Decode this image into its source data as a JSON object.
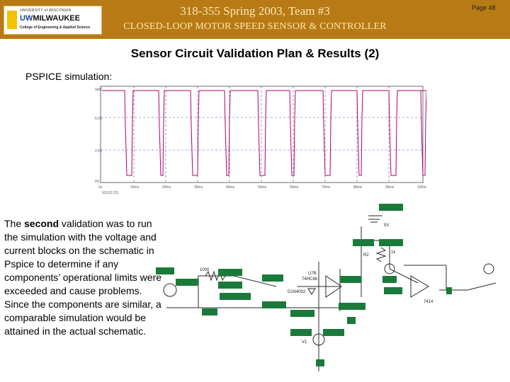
{
  "header": {
    "logo": {
      "university_line": "UNIVERSITY of WISCONSIN",
      "name_prefix": "UW",
      "name_main": "MILWAUKEE",
      "college_line": "College of Engineering & Applied Science"
    },
    "title": "318-355 Spring 2003, Team #3",
    "subtitle": "CLOSED-LOOP MOTOR SPEED SENSOR & CONTROLLER",
    "page_label": "Page 48",
    "colors": {
      "banner": "#b87a14",
      "banner_text": "#fbe7b8"
    }
  },
  "slide": {
    "title": "Sensor Circuit Validation Plan & Results (2)",
    "sim_label": "PSPICE simulation:"
  },
  "waveform": {
    "y_labels": [
      "0ulC",
      "5.0V",
      "2.5V",
      "0V"
    ],
    "x_labels": [
      "0s",
      "10ms",
      "20ms",
      "30ms",
      "40ms",
      "50ms",
      "60ms",
      "70ms",
      "80ms",
      "90ms",
      "100ms"
    ],
    "trace_label": "V(U12:13)",
    "colors": {
      "trace": "#b0006a",
      "grid": "#5050c0"
    }
  },
  "body": {
    "pre": "The ",
    "bold": "second",
    "post": " validation was to run the simulation with the voltage and current blocks on the schematic in Pspice to determine if any components’ operational limits were exceeded and cause problems. Since the components are similar, a comparable simulation would be attained in the actual schematic."
  },
  "schematic": {
    "labels": {
      "r1": "1000",
      "r2": "R2",
      "r2val": "1k",
      "d1": "D1N4002",
      "u": "U7B",
      "part": "74HC86",
      "out": "7414",
      "v1": "V1",
      "bplus": "5V"
    },
    "colors": {
      "box": "#1a7a3a",
      "wire": "#2a2a2a"
    }
  }
}
